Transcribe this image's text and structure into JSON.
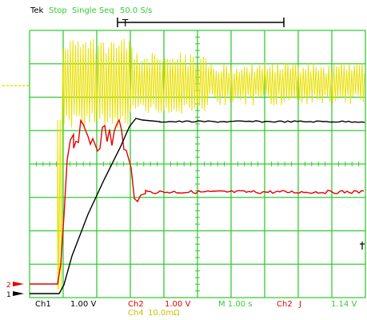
{
  "header": {
    "brand": "Tek",
    "state": "Stop",
    "mode": "Single Seq",
    "rate": "50.0 S/s"
  },
  "markers": {
    "ch1": "1",
    "ch2": "2",
    "trigger": "T"
  },
  "footer": {
    "ch1_label": "Ch1",
    "ch1_scale": "1.00 V",
    "ch2_label": "Ch2",
    "ch2_scale": "1.00 V",
    "timebase": "M 1.00 s",
    "trig_source": "Ch2",
    "trig_slope": "J",
    "trig_level": "1.14 V",
    "ch4_label": "Ch4",
    "ch4_scale": "10.0mΩ"
  },
  "colors": {
    "grid": "#33cc33",
    "ch1": "#000000",
    "ch2": "#e60000",
    "ch4": "#e8e000",
    "text_green": "#33cc33",
    "text_yellow": "#c8c000"
  }
}
